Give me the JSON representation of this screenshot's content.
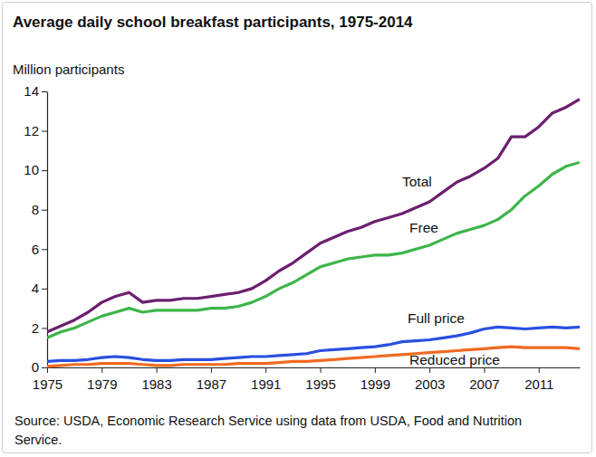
{
  "chart_data": {
    "type": "line",
    "title": "Average daily school breakfast participants, 1975-2014",
    "y_label": "Million participants",
    "source": "Source: USDA, Economic Research Service using data from USDA, Food and Nutrition Service.",
    "x": [
      1975,
      1976,
      1977,
      1978,
      1979,
      1980,
      1981,
      1982,
      1983,
      1984,
      1985,
      1986,
      1987,
      1988,
      1989,
      1990,
      1991,
      1992,
      1993,
      1994,
      1995,
      1996,
      1997,
      1998,
      1999,
      2000,
      2001,
      2002,
      2003,
      2004,
      2005,
      2006,
      2007,
      2008,
      2009,
      2010,
      2011,
      2012,
      2013,
      2014
    ],
    "series": [
      {
        "name": "Total",
        "color": "#6b1f6e",
        "values": [
          1.8,
          2.1,
          2.4,
          2.8,
          3.3,
          3.6,
          3.8,
          3.3,
          3.4,
          3.4,
          3.5,
          3.5,
          3.6,
          3.7,
          3.8,
          4.0,
          4.4,
          4.9,
          5.3,
          5.8,
          6.3,
          6.6,
          6.9,
          7.1,
          7.4,
          7.6,
          7.8,
          8.1,
          8.4,
          8.9,
          9.4,
          9.7,
          10.1,
          10.6,
          11.7,
          11.7,
          12.2,
          12.9,
          13.2,
          13.6
        ]
      },
      {
        "name": "Free",
        "color": "#3db54a",
        "values": [
          1.5,
          1.8,
          2.0,
          2.3,
          2.6,
          2.8,
          3.0,
          2.8,
          2.9,
          2.9,
          2.9,
          2.9,
          3.0,
          3.0,
          3.1,
          3.3,
          3.6,
          4.0,
          4.3,
          4.7,
          5.1,
          5.3,
          5.5,
          5.6,
          5.7,
          5.7,
          5.8,
          6.0,
          6.2,
          6.5,
          6.8,
          7.0,
          7.2,
          7.5,
          8.0,
          8.7,
          9.2,
          9.8,
          10.2,
          10.4
        ]
      },
      {
        "name": "Full price",
        "color": "#2a4fe0",
        "values": [
          0.3,
          0.35,
          0.35,
          0.4,
          0.5,
          0.55,
          0.5,
          0.4,
          0.35,
          0.35,
          0.4,
          0.4,
          0.4,
          0.45,
          0.5,
          0.55,
          0.55,
          0.6,
          0.65,
          0.7,
          0.85,
          0.9,
          0.95,
          1.0,
          1.05,
          1.15,
          1.3,
          1.35,
          1.4,
          1.5,
          1.6,
          1.75,
          1.95,
          2.05,
          2.0,
          1.95,
          2.0,
          2.05,
          2.0,
          2.05
        ]
      },
      {
        "name": "Reduced price",
        "color": "#f06a22",
        "values": [
          0.05,
          0.1,
          0.15,
          0.15,
          0.2,
          0.2,
          0.2,
          0.15,
          0.1,
          0.1,
          0.15,
          0.15,
          0.15,
          0.15,
          0.2,
          0.2,
          0.2,
          0.25,
          0.3,
          0.3,
          0.35,
          0.4,
          0.45,
          0.5,
          0.55,
          0.6,
          0.65,
          0.7,
          0.75,
          0.8,
          0.85,
          0.9,
          0.95,
          1.0,
          1.05,
          1.0,
          1.0,
          1.0,
          1.0,
          0.95
        ]
      }
    ],
    "xlim": [
      1975,
      2014
    ],
    "xticks": [
      1975,
      1979,
      1983,
      1987,
      1991,
      1995,
      1999,
      2003,
      2007,
      2011
    ],
    "ylim": [
      0,
      14
    ],
    "yticks": [
      0,
      2,
      4,
      6,
      8,
      10,
      12,
      14
    ],
    "grid": false
  }
}
